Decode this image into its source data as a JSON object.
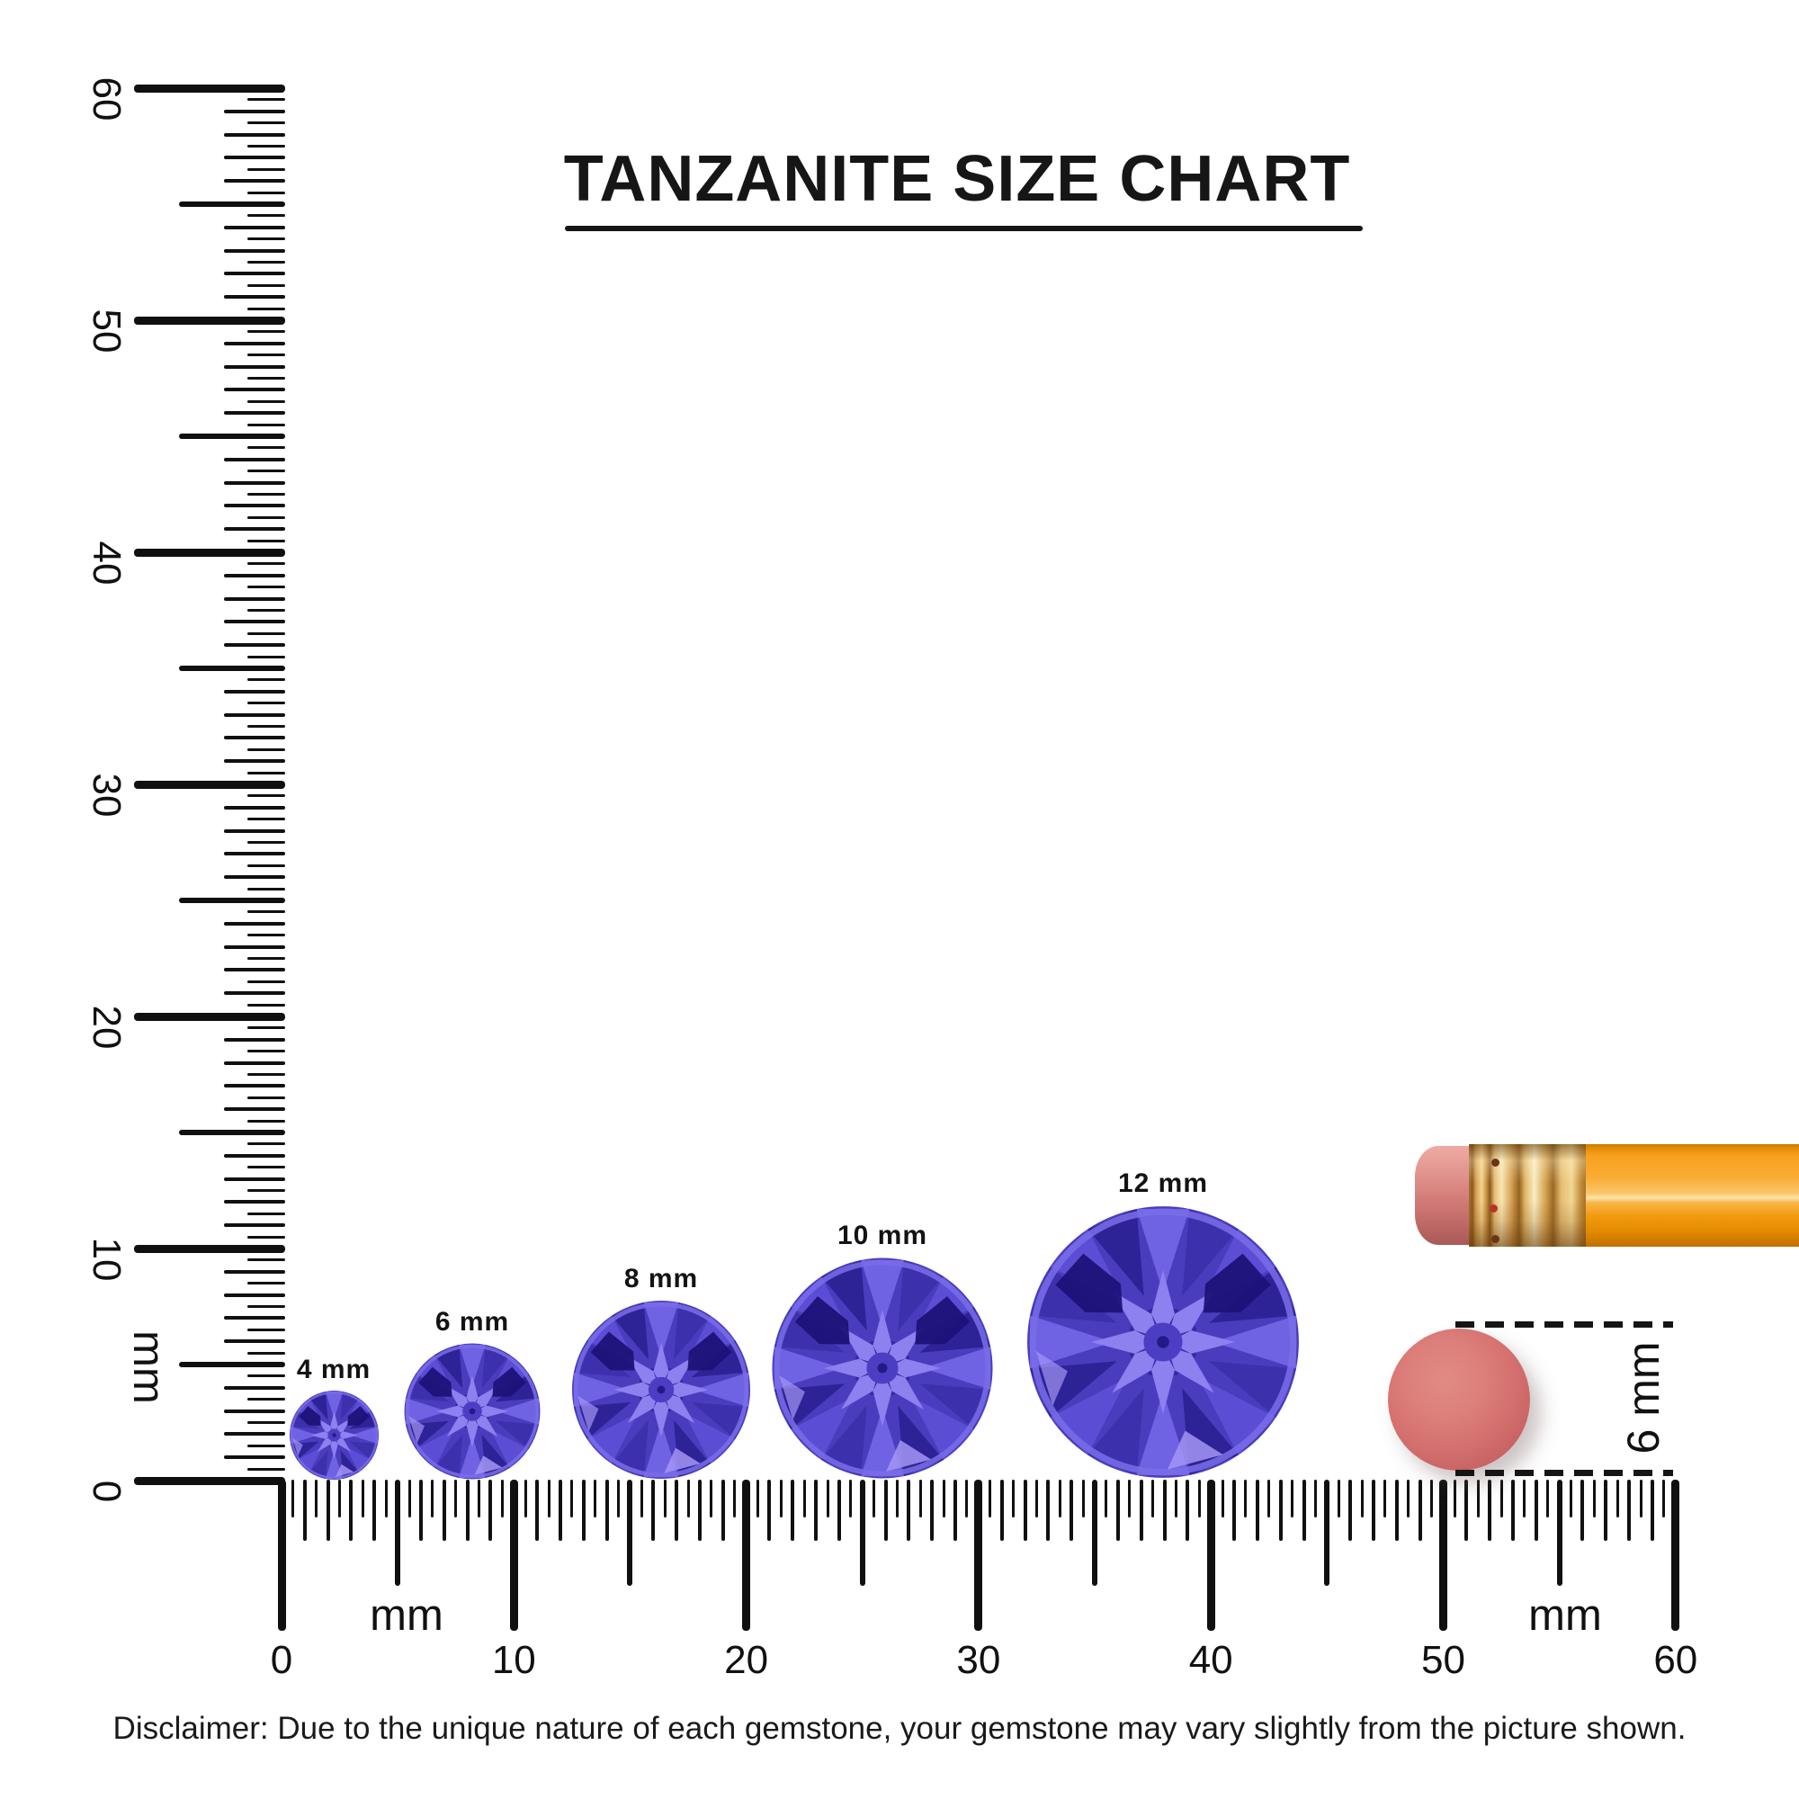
{
  "title": {
    "text": "TANZANITE SIZE CHART"
  },
  "rulers": {
    "vertical": {
      "tick_labels": [
        "0",
        "10",
        "20",
        "30",
        "40",
        "50",
        "60"
      ],
      "unit": "mm",
      "range_mm": [
        0,
        60
      ]
    },
    "horizontal": {
      "tick_labels": [
        "0",
        "10",
        "20",
        "30",
        "40",
        "50",
        "60"
      ],
      "unit_left": "mm",
      "unit_right": "mm",
      "range_mm": [
        0,
        60
      ]
    },
    "tick_color": "#101010"
  },
  "gems": {
    "items": [
      {
        "label": "4 mm",
        "size_mm": 4
      },
      {
        "label": "6 mm",
        "size_mm": 6
      },
      {
        "label": "8 mm",
        "size_mm": 8
      },
      {
        "label": "10 mm",
        "size_mm": 10
      },
      {
        "label": "12 mm",
        "size_mm": 12
      }
    ],
    "palette": {
      "base": "#4a3dbd",
      "wedges": [
        "#6f62e3",
        "#3d30ad",
        "#5b4ed5",
        "#2e2297"
      ],
      "ring": "#7a6de9",
      "star_core": "#352a9e",
      "star_light": "#8d80ef",
      "table": "#4b3ec2",
      "table_dot": "#241a85",
      "dark_patch": "#1b1176",
      "glint": "#a395f3"
    }
  },
  "comparison": {
    "eraser_disc_label": "6 mm",
    "disc_color": "#d4706f",
    "pencil_body_color": "#f8a21f",
    "pencil_ferrule_color": "#e3b568",
    "pencil_eraser_color": "#d8847f"
  },
  "disclaimer": {
    "text": "Disclaimer: Due to the unique nature of each gemstone, your gemstone may vary slightly from the picture shown."
  }
}
